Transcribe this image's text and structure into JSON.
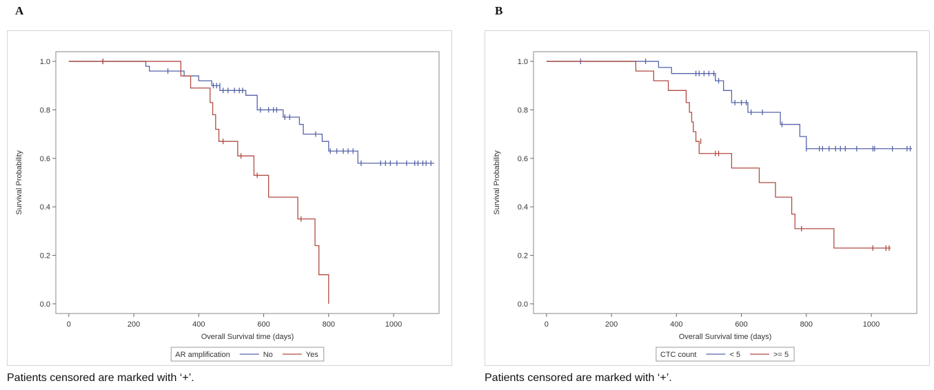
{
  "footnote": "Patients censored are marked with ‘+’.",
  "chart_data": [
    {
      "panel_label": "A",
      "type": "line",
      "xlabel": "Overall Survival time (days)",
      "ylabel": "Survival Probability",
      "xlim": [
        -40,
        1140
      ],
      "ylim": [
        -0.04,
        1.04
      ],
      "xticks": [
        0,
        200,
        400,
        600,
        800,
        1000
      ],
      "yticks": [
        "0.0",
        "0.2",
        "0.4",
        "0.6",
        "0.8",
        "1.0"
      ],
      "grid": false,
      "legend": {
        "title": "AR amplification",
        "position": "bottom"
      },
      "series": [
        {
          "name": "No",
          "color": "#5563a8",
          "steps": [
            [
              0,
              1.0
            ],
            [
              237,
              0.98
            ],
            [
              248,
              0.96
            ],
            [
              300,
              0.96
            ],
            [
              355,
              0.94
            ],
            [
              400,
              0.92
            ],
            [
              440,
              0.9
            ],
            [
              465,
              0.88
            ],
            [
              510,
              0.88
            ],
            [
              545,
              0.86
            ],
            [
              580,
              0.8
            ],
            [
              620,
              0.8
            ],
            [
              660,
              0.77
            ],
            [
              710,
              0.74
            ],
            [
              722,
              0.7
            ],
            [
              780,
              0.67
            ],
            [
              800,
              0.63
            ],
            [
              890,
              0.58
            ],
            [
              1125,
              0.58
            ]
          ],
          "censored": [
            [
              105,
              1.0
            ],
            [
              305,
              0.96
            ],
            [
              445,
              0.9
            ],
            [
              455,
              0.9
            ],
            [
              465,
              0.9
            ],
            [
              475,
              0.88
            ],
            [
              490,
              0.88
            ],
            [
              510,
              0.88
            ],
            [
              525,
              0.88
            ],
            [
              535,
              0.88
            ],
            [
              590,
              0.8
            ],
            [
              615,
              0.8
            ],
            [
              630,
              0.8
            ],
            [
              640,
              0.8
            ],
            [
              665,
              0.77
            ],
            [
              680,
              0.77
            ],
            [
              760,
              0.7
            ],
            [
              805,
              0.63
            ],
            [
              825,
              0.63
            ],
            [
              845,
              0.63
            ],
            [
              860,
              0.63
            ],
            [
              875,
              0.63
            ],
            [
              900,
              0.58
            ],
            [
              960,
              0.58
            ],
            [
              975,
              0.58
            ],
            [
              990,
              0.58
            ],
            [
              1010,
              0.58
            ],
            [
              1040,
              0.58
            ],
            [
              1065,
              0.58
            ],
            [
              1075,
              0.58
            ],
            [
              1090,
              0.58
            ],
            [
              1100,
              0.58
            ],
            [
              1115,
              0.58
            ]
          ]
        },
        {
          "name": "Yes",
          "color": "#b04a40",
          "steps": [
            [
              0,
              1.0
            ],
            [
              345,
              0.94
            ],
            [
              375,
              0.89
            ],
            [
              435,
              0.83
            ],
            [
              443,
              0.78
            ],
            [
              452,
              0.72
            ],
            [
              462,
              0.67
            ],
            [
              520,
              0.61
            ],
            [
              570,
              0.53
            ],
            [
              615,
              0.44
            ],
            [
              705,
              0.35
            ],
            [
              758,
              0.24
            ],
            [
              770,
              0.12
            ],
            [
              800,
              0.0
            ]
          ],
          "censored": [
            [
              105,
              1.0
            ],
            [
              475,
              0.67
            ],
            [
              530,
              0.61
            ],
            [
              580,
              0.53
            ],
            [
              715,
              0.35
            ]
          ]
        }
      ]
    },
    {
      "panel_label": "B",
      "type": "line",
      "xlabel": "Overall Survival time (days)",
      "ylabel": "Survival Probability",
      "xlim": [
        -40,
        1140
      ],
      "ylim": [
        -0.04,
        1.04
      ],
      "xticks": [
        0,
        200,
        400,
        600,
        800,
        1000
      ],
      "yticks": [
        "0.0",
        "0.2",
        "0.4",
        "0.6",
        "0.8",
        "1.0"
      ],
      "grid": false,
      "legend": {
        "title": "CTC count",
        "position": "bottom"
      },
      "series": [
        {
          "name": "< 5",
          "color": "#5563a8",
          "steps": [
            [
              0,
              1.0
            ],
            [
              345,
              0.975
            ],
            [
              385,
              0.95
            ],
            [
              520,
              0.92
            ],
            [
              545,
              0.88
            ],
            [
              570,
              0.83
            ],
            [
              620,
              0.79
            ],
            [
              720,
              0.74
            ],
            [
              780,
              0.69
            ],
            [
              800,
              0.64
            ],
            [
              1125,
              0.64
            ]
          ],
          "censored": [
            [
              105,
              1.0
            ],
            [
              305,
              1.0
            ],
            [
              460,
              0.95
            ],
            [
              470,
              0.95
            ],
            [
              485,
              0.95
            ],
            [
              500,
              0.95
            ],
            [
              515,
              0.95
            ],
            [
              530,
              0.92
            ],
            [
              580,
              0.83
            ],
            [
              600,
              0.83
            ],
            [
              615,
              0.83
            ],
            [
              630,
              0.79
            ],
            [
              665,
              0.79
            ],
            [
              725,
              0.74
            ],
            [
              800,
              0.64
            ],
            [
              840,
              0.64
            ],
            [
              850,
              0.64
            ],
            [
              870,
              0.64
            ],
            [
              890,
              0.64
            ],
            [
              905,
              0.64
            ],
            [
              920,
              0.64
            ],
            [
              955,
              0.64
            ],
            [
              1005,
              0.64
            ],
            [
              1010,
              0.64
            ],
            [
              1065,
              0.64
            ],
            [
              1110,
              0.64
            ],
            [
              1120,
              0.64
            ]
          ]
        },
        {
          "name": ">= 5",
          "color": "#b04a40",
          "steps": [
            [
              0,
              1.0
            ],
            [
              275,
              0.96
            ],
            [
              330,
              0.92
            ],
            [
              375,
              0.88
            ],
            [
              430,
              0.83
            ],
            [
              440,
              0.79
            ],
            [
              447,
              0.75
            ],
            [
              452,
              0.71
            ],
            [
              460,
              0.67
            ],
            [
              470,
              0.62
            ],
            [
              570,
              0.56
            ],
            [
              655,
              0.5
            ],
            [
              705,
              0.44
            ],
            [
              755,
              0.37
            ],
            [
              765,
              0.31
            ],
            [
              885,
              0.23
            ],
            [
              1060,
              0.23
            ]
          ],
          "censored": [
            [
              475,
              0.67
            ],
            [
              520,
              0.62
            ],
            [
              530,
              0.62
            ],
            [
              785,
              0.31
            ],
            [
              1005,
              0.23
            ],
            [
              1045,
              0.23
            ],
            [
              1055,
              0.23
            ]
          ]
        }
      ]
    }
  ]
}
